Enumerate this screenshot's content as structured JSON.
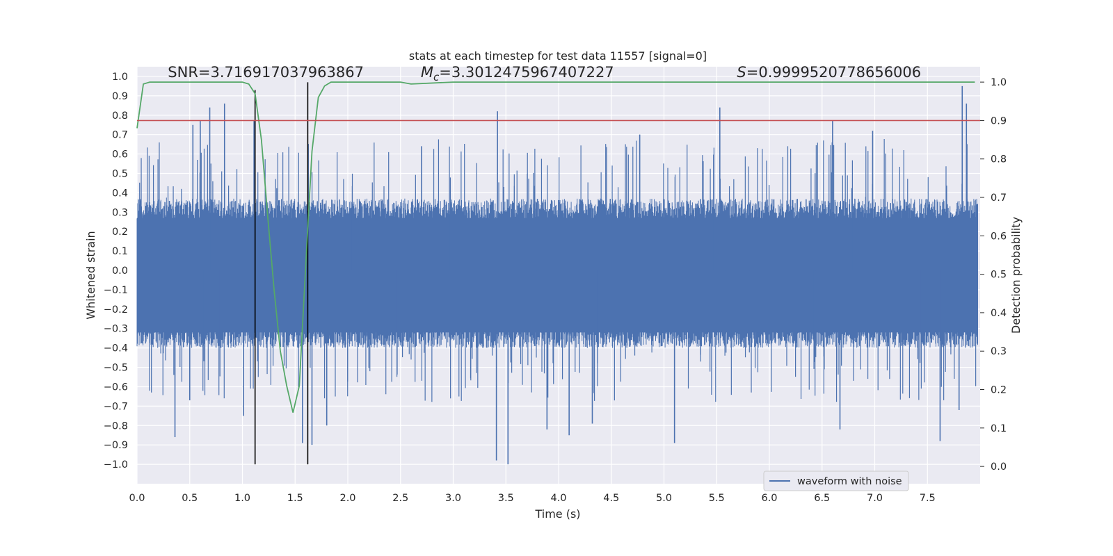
{
  "chart_data": {
    "type": "line",
    "title": "stats at each timestep for test data 11557 [signal=0]",
    "xlabel": "Time (s)",
    "ylabel": "Whitened strain",
    "y2label": "Detection probability",
    "xlim": [
      0.0,
      8.0
    ],
    "ylim": [
      -1.1,
      1.05
    ],
    "y2lim": [
      -0.045,
      1.04
    ],
    "x_ticks": [
      0.0,
      0.5,
      1.0,
      1.5,
      2.0,
      2.5,
      3.0,
      3.5,
      4.0,
      4.5,
      5.0,
      5.5,
      6.0,
      6.5,
      7.0,
      7.5
    ],
    "x_tick_labels": [
      "0.0",
      "0.5",
      "1.0",
      "1.5",
      "2.0",
      "2.5",
      "3.0",
      "3.5",
      "4.0",
      "4.5",
      "5.0",
      "5.5",
      "6.0",
      "6.5",
      "7.0",
      "7.5"
    ],
    "y_ticks": [
      1.0,
      0.9,
      0.8,
      0.7,
      0.6,
      0.5,
      0.4,
      0.3,
      0.2,
      0.1,
      0.0,
      -0.1,
      -0.2,
      -0.3,
      -0.4,
      -0.5,
      -0.6,
      -0.7,
      -0.8,
      -0.9,
      -1.0
    ],
    "y_tick_labels": [
      "1.0",
      "0.9",
      "0.8",
      "0.7",
      "0.6",
      "0.5",
      "0.4",
      "0.3",
      "0.2",
      "0.1",
      "0.0",
      "−0.1",
      "−0.2",
      "−0.3",
      "−0.4",
      "−0.5",
      "−0.6",
      "−0.7",
      "−0.8",
      "−0.9",
      "−1.0"
    ],
    "y2_ticks": [
      1.0,
      0.9,
      0.8,
      0.7,
      0.6,
      0.5,
      0.4,
      0.3,
      0.2,
      0.1,
      0.0
    ],
    "y2_tick_labels": [
      "1.0",
      "0.9",
      "0.8",
      "0.7",
      "0.6",
      "0.5",
      "0.4",
      "0.3",
      "0.2",
      "0.1",
      "0.0"
    ],
    "grid": true,
    "legend_position": "lower-right",
    "annotations": [
      {
        "id": "snr",
        "text": "SNR=3.716917037963867",
        "x": 0.2,
        "y": 1.0
      },
      {
        "id": "mc",
        "text": "=3.3012475967407227",
        "symbol": "M",
        "subscript": "c",
        "x": 2.6,
        "y": 1.0
      },
      {
        "id": "s",
        "text": "=0.9999520778656006",
        "symbol": "S",
        "x": 5.6,
        "y": 1.0
      }
    ],
    "series": [
      {
        "name": "waveform with noise",
        "color": "#4c72b0",
        "kind": "dense-noise",
        "axis": "left",
        "x_range": [
          0.0,
          7.98
        ],
        "body_envelope": 0.38,
        "peaks": [
          {
            "x": 0.36,
            "y": -0.86
          },
          {
            "x": 0.5,
            "y": -0.67
          },
          {
            "x": 0.53,
            "y": 0.75
          },
          {
            "x": 0.6,
            "y": 0.77
          },
          {
            "x": 0.69,
            "y": 0.84
          },
          {
            "x": 0.83,
            "y": 0.86
          },
          {
            "x": 1.01,
            "y": -0.75
          },
          {
            "x": 1.11,
            "y": 0.77
          },
          {
            "x": 1.57,
            "y": -0.89
          },
          {
            "x": 1.66,
            "y": -0.9
          },
          {
            "x": 1.8,
            "y": -0.8
          },
          {
            "x": 3.41,
            "y": -0.98
          },
          {
            "x": 3.42,
            "y": 0.82
          },
          {
            "x": 3.52,
            "y": -1.0
          },
          {
            "x": 3.89,
            "y": -0.82
          },
          {
            "x": 4.1,
            "y": -0.85
          },
          {
            "x": 4.32,
            "y": -0.79
          },
          {
            "x": 5.1,
            "y": -0.89
          },
          {
            "x": 5.53,
            "y": 0.84
          },
          {
            "x": 6.6,
            "y": 0.77
          },
          {
            "x": 6.67,
            "y": -0.82
          },
          {
            "x": 7.62,
            "y": -0.88
          },
          {
            "x": 7.83,
            "y": 0.95
          },
          {
            "x": 7.87,
            "y": 0.86
          },
          {
            "x": 7.8,
            "y": -0.72
          },
          {
            "x": 2.7,
            "y": 0.64
          },
          {
            "x": 4.77,
            "y": 0.7
          },
          {
            "x": 6.98,
            "y": 0.72
          }
        ]
      },
      {
        "name": "",
        "color": "#55a868",
        "kind": "line",
        "axis": "right",
        "x": [
          0.0,
          0.06,
          0.12,
          0.5,
          1.0,
          1.06,
          1.12,
          1.18,
          1.24,
          1.3,
          1.36,
          1.42,
          1.48,
          1.54,
          1.6,
          1.66,
          1.72,
          1.78,
          1.84,
          2.0,
          2.5,
          2.6,
          3.0,
          3.5,
          4.0,
          5.0,
          6.0,
          7.0,
          7.95
        ],
        "y": [
          0.88,
          0.995,
          1.0,
          1.0,
          1.0,
          0.995,
          0.97,
          0.85,
          0.65,
          0.46,
          0.3,
          0.21,
          0.14,
          0.21,
          0.52,
          0.82,
          0.96,
          0.99,
          1.0,
          1.0,
          1.0,
          0.995,
          1.0,
          1.0,
          1.0,
          1.0,
          1.0,
          1.0,
          1.0
        ]
      },
      {
        "name": "",
        "color": "#c44e52",
        "kind": "hline",
        "axis": "right",
        "y": 0.9
      }
    ],
    "vlines": [
      {
        "x": 1.12,
        "color": "#000000",
        "ymin": -1.0,
        "ymax": 0.93
      },
      {
        "x": 1.62,
        "color": "#000000",
        "ymin": -1.0,
        "ymax": 0.97
      }
    ]
  }
}
